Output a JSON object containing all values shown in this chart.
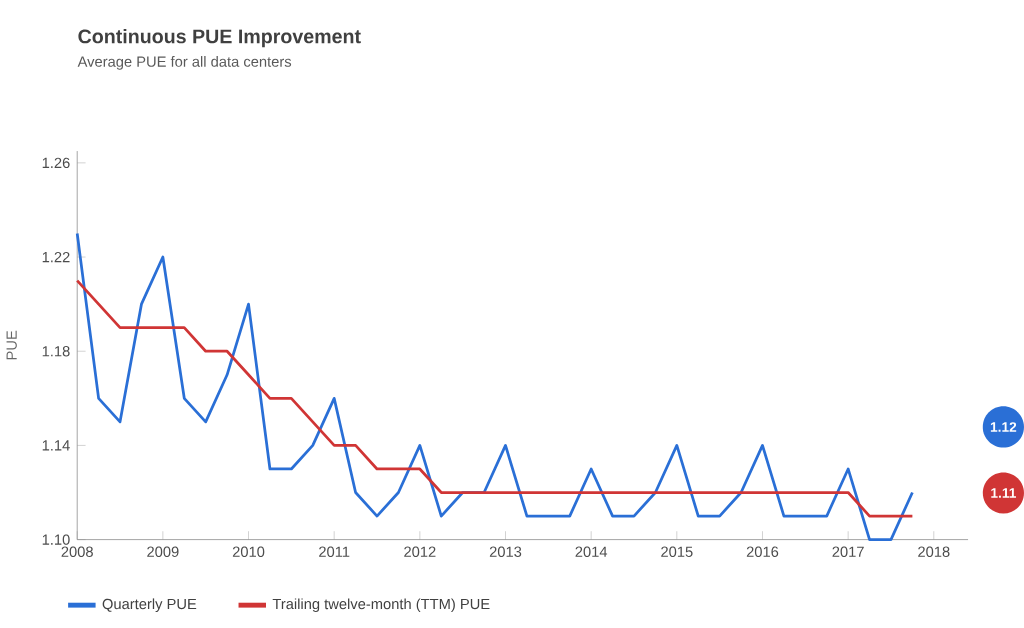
{
  "chart_data": {
    "type": "line",
    "title": "Continuous PUE Improvement",
    "subtitle": "Average PUE for all data centers",
    "ylabel": "PUE",
    "x": [
      2008.0,
      2008.25,
      2008.5,
      2008.75,
      2009.0,
      2009.25,
      2009.5,
      2009.75,
      2010.0,
      2010.25,
      2010.5,
      2010.75,
      2011.0,
      2011.25,
      2011.5,
      2011.75,
      2012.0,
      2012.25,
      2012.5,
      2012.75,
      2013.0,
      2013.25,
      2013.5,
      2013.75,
      2014.0,
      2014.25,
      2014.5,
      2014.75,
      2015.0,
      2015.25,
      2015.5,
      2015.75,
      2016.0,
      2016.25,
      2016.5,
      2016.75,
      2017.0,
      2017.25,
      2017.5,
      2017.75
    ],
    "series": [
      {
        "name": "Quarterly PUE",
        "color": "#2a6fd6",
        "values": [
          1.23,
          1.16,
          1.15,
          1.2,
          1.22,
          1.16,
          1.15,
          1.17,
          1.2,
          1.13,
          1.13,
          1.14,
          1.16,
          1.12,
          1.11,
          1.12,
          1.14,
          1.11,
          1.12,
          1.12,
          1.14,
          1.11,
          1.11,
          1.11,
          1.13,
          1.11,
          1.11,
          1.12,
          1.14,
          1.11,
          1.11,
          1.12,
          1.14,
          1.11,
          1.11,
          1.11,
          1.13,
          1.1,
          1.1,
          1.12
        ]
      },
      {
        "name": "Trailing twelve-month (TTM) PUE",
        "color": "#d03535",
        "values": [
          1.21,
          1.2,
          1.19,
          1.19,
          1.19,
          1.19,
          1.18,
          1.18,
          1.17,
          1.16,
          1.16,
          1.15,
          1.14,
          1.14,
          1.13,
          1.13,
          1.13,
          1.12,
          1.12,
          1.12,
          1.12,
          1.12,
          1.12,
          1.12,
          1.12,
          1.12,
          1.12,
          1.12,
          1.12,
          1.12,
          1.12,
          1.12,
          1.12,
          1.12,
          1.12,
          1.12,
          1.12,
          1.11,
          1.11,
          1.11
        ]
      }
    ],
    "annotations": [
      "1.12",
      "1.11"
    ],
    "xlim": [
      2008,
      2018.4
    ],
    "ylim": [
      1.1,
      1.265
    ],
    "xticks": [
      2008,
      2009,
      2010,
      2011,
      2012,
      2013,
      2014,
      2015,
      2016,
      2017,
      2018
    ],
    "yticks": [
      {
        "value": 1.1,
        "label": "1.10"
      },
      1.14,
      1.18,
      1.22,
      1.26
    ],
    "grid": false,
    "legend": "bottom",
    "marker": "none",
    "line_style": "solid"
  }
}
